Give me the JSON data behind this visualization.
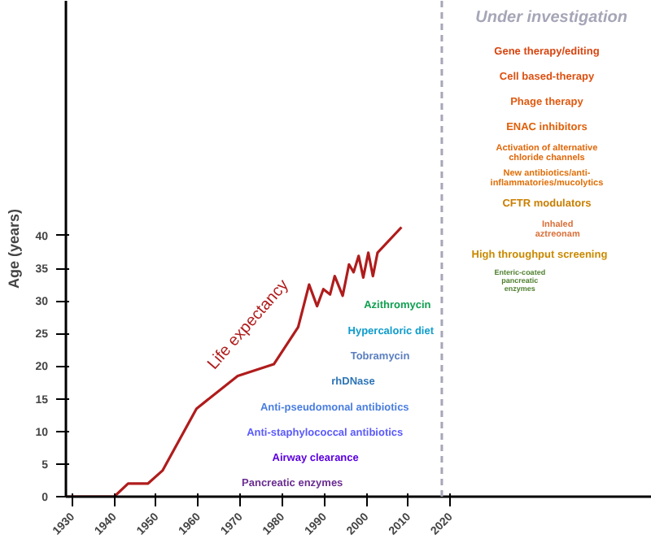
{
  "chart_data": {
    "type": "line",
    "ylabel": "Age (years)",
    "x": [
      1928.5,
      1940,
      1943.3,
      1948,
      1951.5,
      1959.6,
      1969.4,
      1978,
      1983.8,
      1986.4,
      1988.3,
      1989.8,
      1991.4,
      1992.5,
      1994.4,
      1995.9,
      1997,
      1998.2,
      1999.3,
      2000.5,
      2001.6,
      2002.7,
      2008.4
    ],
    "series": [
      {
        "name": "Life expectancy",
        "color": "#b01c1c",
        "values": [
          0,
          0,
          2,
          2,
          4,
          13.5,
          18.5,
          20.3,
          26,
          32.5,
          29.2,
          31.8,
          31,
          33.8,
          30.8,
          35.6,
          34.4,
          36.9,
          33.6,
          37.4,
          33.8,
          37.4,
          41.3
        ]
      }
    ],
    "xlim": [
      1928.5,
      2068
    ],
    "ylim": [
      0,
      76
    ],
    "xticks": [
      1930,
      1940,
      1950,
      1960,
      1970,
      1980,
      1990,
      2000,
      2010,
      2020
    ],
    "yticks": [
      0,
      5,
      10,
      15,
      20,
      25,
      30,
      35,
      40
    ],
    "ref_lines": [
      {
        "axis": "x",
        "value": 2018,
        "label": "Under investigation",
        "color": "#a6a6b8",
        "line_style": "dashed"
      }
    ],
    "annotations": [
      "Pancreatic enzymes",
      "Airway clearance",
      "Anti-staphylococcal antibiotics",
      "Anti-pseudomonal antibiotics",
      "rhDNase",
      "Tobramycin",
      "Hypercaloric diet",
      "Azithromycin",
      "Enteric-coated\npancreatic\nenzymes",
      "High throughput screening",
      "Inhaled\naztreonam",
      "CFTR modulators",
      "New antibiotics/anti-\ninflammatories/mucolytics",
      "Activation of alternative\nchloride channels",
      "ENAC inhibitors",
      "Phage therapy",
      "Cell based-therapy",
      "Gene therapy/editing"
    ]
  }
}
